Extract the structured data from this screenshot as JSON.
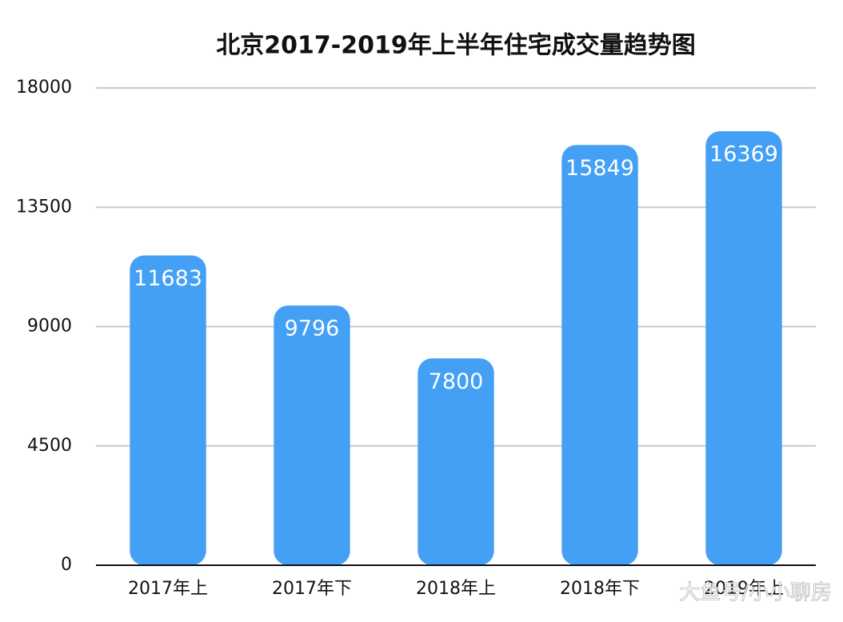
{
  "chart_data": {
    "type": "bar",
    "title": "北京2017-2019年上半年住宅成交量趋势图",
    "categories": [
      "2017年上",
      "2017年下",
      "2018年上",
      "2018年下",
      "2019年上"
    ],
    "values": [
      11683,
      9796,
      7800,
      15849,
      16369
    ],
    "color": "#44a0f5",
    "ylim": [
      0,
      18000
    ],
    "yticks": [
      0,
      4500,
      9000,
      13500,
      18000
    ],
    "grid": true,
    "watermark": "大鱼号/小小聊房"
  }
}
